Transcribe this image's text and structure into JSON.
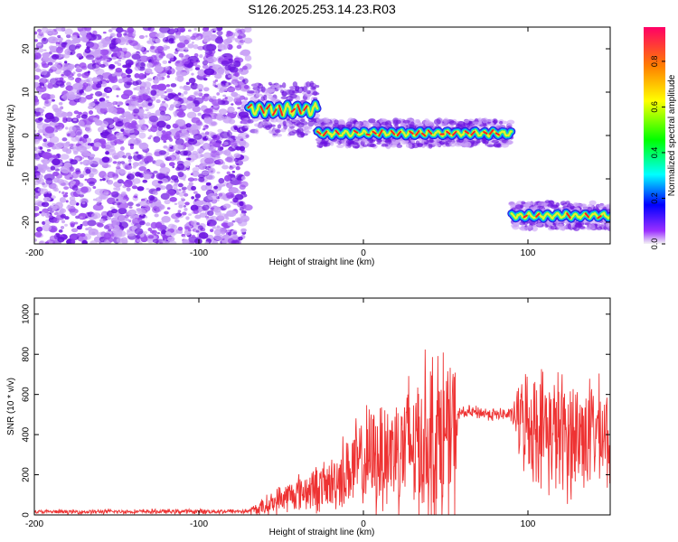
{
  "chart_data": [
    {
      "type": "heatmap",
      "title": "S126.2025.253.14.23.R03",
      "xlabel": "Height of straight line (km)",
      "ylabel": "Frequency (Hz)",
      "xlim": [
        -200,
        150
      ],
      "ylim": [
        -25,
        25
      ],
      "xticks": [
        -200,
        -100,
        0,
        100
      ],
      "yticks": [
        -20,
        -10,
        0,
        10,
        20
      ],
      "grid": false,
      "colorbar": {
        "label": "Normalized spectral amplitude",
        "range": [
          0,
          0.95
        ],
        "ticks": [
          0.0,
          0.2,
          0.4,
          0.6,
          0.8
        ]
      },
      "noise_region_km": [
        -200,
        -70
      ],
      "trace_segments": [
        {
          "x_start": -70,
          "x_end": -28,
          "freq_hz": 6,
          "freq_spread_hz": 3
        },
        {
          "x_start": -28,
          "x_end": 90,
          "freq_hz": 0.5,
          "freq_spread_hz": 1.5
        },
        {
          "x_start": 90,
          "x_end": 150,
          "freq_hz": -18.5,
          "freq_spread_hz": 1.5
        }
      ]
    },
    {
      "type": "line",
      "xlabel": "Height of straight line (km)",
      "ylabel": "SNR (10 * v/v)",
      "xlim": [
        -200,
        150
      ],
      "ylim": [
        0,
        1080
      ],
      "xticks": [
        -200,
        -100,
        0,
        100
      ],
      "yticks": [
        0,
        200,
        400,
        600,
        800,
        1000
      ],
      "grid": false,
      "series": [
        {
          "name": "SNR",
          "color": "#ee3333",
          "profile": {
            "x": [
              -200,
              -70,
              -60,
              -50,
              -40,
              -30,
              -20,
              -10,
              0,
              10,
              20,
              30,
              40,
              50,
              55,
              58,
              60,
              70,
              80,
              90,
              95,
              100,
              110,
              120,
              130,
              140,
              150
            ],
            "base": [
              15,
              18,
              40,
              80,
              110,
              130,
              150,
              220,
              260,
              300,
              330,
              360,
              380,
              390,
              380,
              500,
              510,
              510,
              500,
              500,
              480,
              460,
              430,
              400,
              390,
              420,
              380
            ],
            "amp": [
              12,
              15,
              60,
              90,
              110,
              140,
              160,
              250,
              300,
              360,
              420,
              480,
              520,
              560,
              520,
              40,
              40,
              40,
              40,
              40,
              250,
              330,
              360,
              380,
              380,
              320,
              300
            ]
          }
        }
      ]
    }
  ],
  "colors": {
    "noise": "#8a2be2",
    "snr_line": "#ee3333",
    "axis": "#000000"
  }
}
